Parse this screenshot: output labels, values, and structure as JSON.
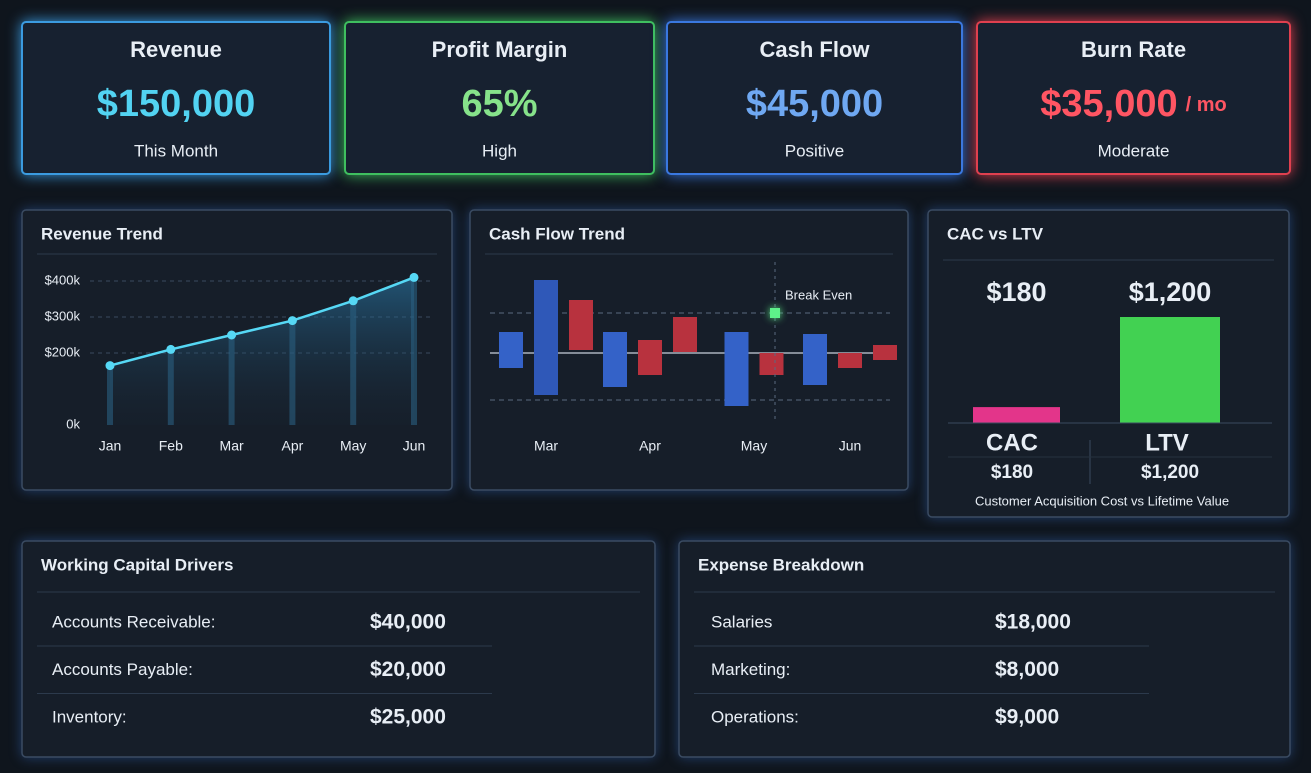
{
  "kpis": [
    {
      "title": "Revenue",
      "value": "$150,000",
      "note": "This Month",
      "color": "#52d3f2",
      "border": "#3b9be0"
    },
    {
      "title": "Profit Margin",
      "value": "65%",
      "note": "High",
      "color": "#86e28a",
      "border": "#3fbf5f"
    },
    {
      "title": "Cash Flow",
      "value": "$45,000",
      "note": "Positive",
      "color": "#6fa8f2",
      "border": "#3a78e0"
    },
    {
      "title": "Burn Rate",
      "value": "$35,000",
      "unit": "/ mo",
      "note": "Moderate",
      "color": "#ff5563",
      "border": "#e0404f"
    }
  ],
  "revenue_trend": {
    "type": "line",
    "title": "Revenue Trend",
    "categories": [
      "Jan",
      "Feb",
      "Mar",
      "Apr",
      "May",
      "Jun"
    ],
    "values": [
      165000,
      210000,
      250000,
      290000,
      345000,
      410000
    ],
    "color": "#56d8f5",
    "ylim": [
      0,
      420000
    ],
    "yticks": [
      {
        "value": 0,
        "label": "0k"
      },
      {
        "value": 200000,
        "label": "$200k"
      },
      {
        "value": 300000,
        "label": "$300k"
      },
      {
        "value": 400000,
        "label": "$400k"
      }
    ]
  },
  "cash_flow_trend": {
    "type": "floating-bar",
    "title": "Cash Flow Trend",
    "categories": [
      "Mar",
      "Apr",
      "May",
      "Jun"
    ],
    "groups": [
      [
        {
          "low": -1.5,
          "high": 2.1,
          "color": "#3462c8"
        },
        {
          "low": -4.2,
          "high": 7.3,
          "color": "#2f58b8"
        },
        {
          "low": 0.3,
          "high": 5.3,
          "color": "#b8323e"
        }
      ],
      [
        {
          "low": -3.4,
          "high": 2.1,
          "color": "#3462c8"
        },
        {
          "low": -2.2,
          "high": 1.3,
          "color": "#b8323e"
        },
        {
          "low": 0.1,
          "high": 3.6,
          "color": "#b8323e"
        }
      ],
      [
        {
          "low": -5.3,
          "high": 2.1,
          "color": "#3462c8"
        },
        {
          "low": -2.2,
          "high": 0,
          "color": "#b8323e"
        }
      ],
      [
        {
          "low": -3.2,
          "high": 1.9,
          "color": "#3462c8"
        },
        {
          "low": -1.5,
          "high": 0,
          "color": "#b8323e"
        },
        {
          "low": -0.7,
          "high": 0.8,
          "color": "#b8323e"
        }
      ]
    ],
    "ylim": [
      -6,
      8
    ],
    "guides": [
      4,
      -4.7
    ],
    "break_even": {
      "label": "Break Even",
      "value": 4
    }
  },
  "cac_vs_ltv": {
    "type": "bar",
    "title": "CAC vs LTV",
    "categories": [
      "CAC",
      "LTV"
    ],
    "values": [
      180,
      1200
    ],
    "value_labels": [
      "$180",
      "$1,200"
    ],
    "colors": [
      "#e3358a",
      "#42d152"
    ],
    "caption": "Customer Acquisition Cost vs Lifetime Value"
  },
  "working_capital": {
    "title": "Working Capital Drivers",
    "rows": [
      [
        "Accounts Receivable:",
        "$40,000"
      ],
      [
        "Accounts Payable:",
        "$20,000"
      ],
      [
        "Inventory:",
        "$25,000"
      ]
    ]
  },
  "expenses": {
    "title": "Expense Breakdown",
    "rows": [
      [
        "Salaries",
        "$18,000"
      ],
      [
        "Marketing:",
        "$8,000"
      ],
      [
        "Operations:",
        "$9,000"
      ]
    ]
  }
}
